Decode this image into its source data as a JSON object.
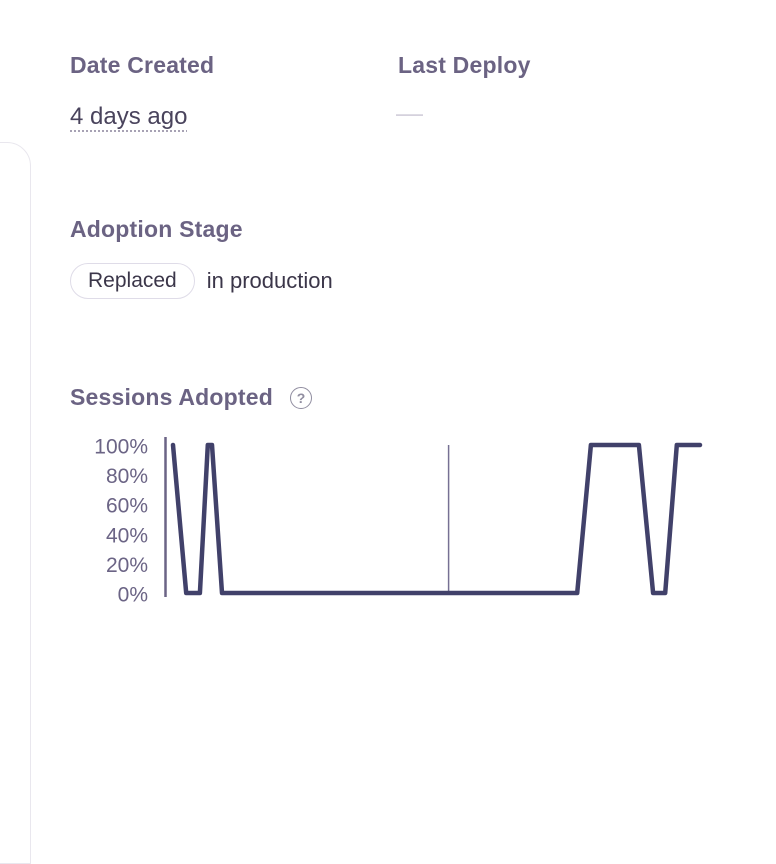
{
  "meta": {
    "date_created": {
      "label": "Date Created",
      "value": "4 days ago"
    },
    "last_deploy": {
      "label": "Last Deploy",
      "value": "—"
    }
  },
  "adoption": {
    "label": "Adoption Stage",
    "badge": "Replaced",
    "suffix": "in production"
  },
  "sessions": {
    "label": "Sessions Adopted",
    "help_glyph": "?"
  },
  "colors": {
    "heading": "#6b6383",
    "body_text": "#3b3649",
    "data_line": "#41416a",
    "axis": "#6b6485",
    "card_border": "#e9e7ee"
  },
  "chart_data": {
    "type": "line",
    "title": "Sessions Adopted",
    "xlabel": "",
    "ylabel": "",
    "ylim": [
      0,
      100
    ],
    "yticks": [
      "100%",
      "80%",
      "60%",
      "40%",
      "20%",
      "0%"
    ],
    "ytick_values": [
      100,
      80,
      60,
      40,
      20,
      0
    ],
    "x_range": "unlabeled time axis, x normalized 0-100",
    "grid": "single vertical reference line",
    "gridline_x": 52.3,
    "legend": "none",
    "series": [
      {
        "name": "Sessions Adopted %",
        "points": [
          [
            0,
            100
          ],
          [
            2.5,
            0
          ],
          [
            5.1,
            0
          ],
          [
            6.6,
            100
          ],
          [
            7.4,
            100
          ],
          [
            9.3,
            0
          ],
          [
            76.7,
            0
          ],
          [
            79.3,
            100
          ],
          [
            88.4,
            100
          ],
          [
            91.1,
            0
          ],
          [
            93.4,
            0
          ],
          [
            95.6,
            100
          ],
          [
            100,
            100
          ]
        ]
      }
    ]
  }
}
